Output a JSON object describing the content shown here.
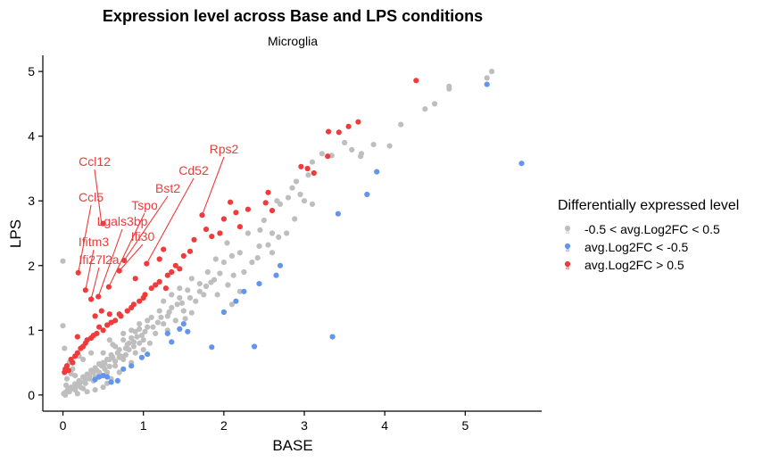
{
  "chart_data": {
    "type": "scatter",
    "title": "Expression level across Base and LPS conditions",
    "subtitle": "Microglia",
    "xlabel": "BASE",
    "ylabel": "LPS",
    "xlim": [
      -0.25,
      5.95
    ],
    "ylim": [
      -0.25,
      5.25
    ],
    "x_ticks": [
      0,
      1,
      2,
      3,
      4,
      5
    ],
    "y_ticks": [
      0,
      1,
      2,
      3,
      4,
      5
    ],
    "grid": false,
    "legend": {
      "title": "Differentially expressed level",
      "position": "right",
      "entries": [
        {
          "label": "-0.5 < avg.Log2FC < 0.5",
          "color": "#bebebe",
          "key": "glyph-a"
        },
        {
          "label": "avg.Log2FC < -0.5",
          "color": "#6495ed",
          "key": "glyph-a"
        },
        {
          "label": "avg.Log2FC > 0.5",
          "color": "#ee3b3b",
          "key": "glyph-a"
        }
      ]
    },
    "series": [
      {
        "name": "-0.5 < avg.Log2FC < 0.5",
        "color": "#bebebe",
        "points": [
          [
            5.33,
            5.0
          ],
          [
            5.27,
            4.9
          ],
          [
            4.8,
            4.77
          ],
          [
            4.8,
            4.73
          ],
          [
            4.62,
            4.5
          ],
          [
            4.5,
            4.42
          ],
          [
            4.2,
            4.18
          ],
          [
            4.06,
            3.85
          ],
          [
            3.86,
            3.87
          ],
          [
            3.71,
            3.73
          ],
          [
            3.7,
            3.69
          ],
          [
            3.59,
            3.79
          ],
          [
            3.5,
            3.9
          ],
          [
            3.34,
            3.7
          ],
          [
            3.22,
            3.73
          ],
          [
            3.1,
            3.6
          ],
          [
            3.05,
            3.4
          ],
          [
            2.95,
            3.1
          ],
          [
            3.1,
            2.95
          ],
          [
            2.9,
            3.3
          ],
          [
            2.85,
            3.2
          ],
          [
            3.0,
            3.0
          ],
          [
            2.8,
            3.05
          ],
          [
            2.7,
            2.95
          ],
          [
            2.66,
            3.0
          ],
          [
            2.88,
            2.72
          ],
          [
            2.5,
            2.7
          ],
          [
            2.45,
            2.55
          ],
          [
            2.6,
            2.5
          ],
          [
            2.44,
            2.3
          ],
          [
            2.3,
            2.5
          ],
          [
            2.55,
            2.32
          ],
          [
            2.78,
            2.5
          ],
          [
            2.68,
            2.44
          ],
          [
            2.2,
            2.2
          ],
          [
            2.04,
            2.35
          ],
          [
            2.1,
            2.15
          ],
          [
            2.0,
            2.05
          ],
          [
            1.9,
            2.1
          ],
          [
            1.8,
            1.9
          ],
          [
            1.84,
            1.74
          ],
          [
            1.7,
            1.72
          ],
          [
            1.6,
            1.8
          ],
          [
            1.55,
            1.62
          ],
          [
            1.45,
            1.5
          ],
          [
            1.92,
            1.55
          ],
          [
            2.1,
            1.4
          ],
          [
            2.2,
            1.6
          ],
          [
            1.65,
            1.45
          ],
          [
            1.5,
            1.3
          ],
          [
            1.35,
            1.35
          ],
          [
            1.3,
            1.22
          ],
          [
            1.4,
            1.15
          ],
          [
            1.52,
            1.18
          ],
          [
            1.6,
            1.27
          ],
          [
            1.25,
            1.1
          ],
          [
            1.2,
            1.3
          ],
          [
            1.1,
            1.2
          ],
          [
            1.05,
            1.05
          ],
          [
            0.95,
            1.1
          ],
          [
            0.9,
            0.98
          ],
          [
            1.15,
            0.95
          ],
          [
            0.85,
            0.88
          ],
          [
            0.8,
            0.78
          ],
          [
            0.75,
            0.85
          ],
          [
            0.7,
            0.7
          ],
          [
            0.65,
            0.75
          ],
          [
            0.6,
            0.62
          ],
          [
            0.72,
            0.6
          ],
          [
            0.55,
            0.55
          ],
          [
            0.5,
            0.5
          ],
          [
            0.45,
            0.48
          ],
          [
            0.4,
            0.42
          ],
          [
            0.35,
            0.38
          ],
          [
            0.3,
            0.32
          ],
          [
            0.25,
            0.28
          ],
          [
            0.2,
            0.22
          ],
          [
            0.15,
            0.17
          ],
          [
            0.1,
            0.12
          ],
          [
            0.06,
            0.08
          ],
          [
            0.03,
            0.04
          ],
          [
            0.01,
            0.02
          ],
          [
            0.03,
            0.0
          ],
          [
            0.08,
            0.05
          ],
          [
            0.12,
            0.1
          ],
          [
            0.18,
            0.14
          ],
          [
            0.22,
            0.2
          ],
          [
            0.28,
            0.24
          ],
          [
            0.33,
            0.3
          ],
          [
            0.38,
            0.35
          ],
          [
            0.42,
            0.38
          ],
          [
            0.48,
            0.45
          ],
          [
            0.52,
            0.48
          ],
          [
            0.58,
            0.55
          ],
          [
            0.62,
            0.58
          ],
          [
            0.68,
            0.65
          ],
          [
            0.78,
            0.72
          ],
          [
            0.82,
            0.8
          ],
          [
            0.88,
            0.82
          ],
          [
            0.92,
            0.9
          ],
          [
            0.98,
            0.92
          ],
          [
            1.02,
            0.98
          ],
          [
            1.12,
            1.05
          ],
          [
            1.18,
            1.12
          ],
          [
            0.0,
            2.07
          ],
          [
            0.0,
            1.07
          ],
          [
            0.02,
            0.72
          ],
          [
            0.4,
            0.08
          ],
          [
            0.5,
            0.12
          ],
          [
            0.55,
            0.18
          ],
          [
            0.3,
            0.05
          ],
          [
            0.6,
            0.25
          ],
          [
            0.7,
            0.35
          ],
          [
            0.85,
            0.5
          ],
          [
            1.0,
            0.7
          ],
          [
            0.15,
            0.3
          ],
          [
            0.12,
            0.4
          ],
          [
            0.08,
            0.5
          ],
          [
            0.25,
            0.55
          ],
          [
            0.2,
            0.6
          ],
          [
            0.35,
            0.65
          ],
          [
            2.25,
            1.9
          ],
          [
            2.35,
            2.05
          ],
          [
            2.05,
            1.7
          ],
          [
            1.75,
            1.55
          ],
          [
            2.12,
            1.85
          ],
          [
            2.6,
            2.2
          ],
          [
            2.42,
            2.12
          ],
          [
            1.35,
            1.55
          ],
          [
            1.45,
            1.65
          ],
          [
            1.25,
            1.45
          ],
          [
            0.65,
            0.45
          ],
          [
            0.75,
            0.55
          ],
          [
            0.9,
            0.65
          ],
          [
            1.08,
            0.8
          ],
          [
            1.3,
            1.0
          ],
          [
            0.45,
            0.3
          ],
          [
            0.55,
            0.35
          ],
          [
            0.38,
            0.22
          ],
          [
            0.18,
            0.02
          ],
          [
            0.25,
            0.1
          ],
          [
            0.5,
            0.65
          ],
          [
            0.62,
            0.78
          ],
          [
            0.58,
            0.85
          ],
          [
            0.75,
            0.95
          ],
          [
            0.85,
            1.0
          ],
          [
            0.95,
            1.02
          ],
          [
            1.05,
            1.15
          ],
          [
            1.22,
            1.2
          ],
          [
            1.32,
            1.28
          ],
          [
            1.42,
            1.4
          ],
          [
            1.48,
            1.42
          ],
          [
            1.58,
            1.5
          ],
          [
            1.7,
            1.6
          ],
          [
            1.78,
            1.68
          ],
          [
            1.88,
            1.78
          ],
          [
            1.95,
            1.88
          ],
          [
            0.05,
            0.25
          ],
          [
            0.1,
            0.33
          ],
          [
            0.04,
            0.15
          ],
          [
            0.15,
            0.08
          ],
          [
            0.22,
            0.12
          ],
          [
            0.28,
            0.18
          ],
          [
            0.33,
            0.25
          ],
          [
            0.4,
            0.28
          ],
          [
            0.45,
            0.35
          ],
          [
            0.52,
            0.4
          ],
          [
            0.58,
            0.44
          ],
          [
            0.65,
            0.52
          ],
          [
            0.7,
            0.58
          ],
          [
            0.78,
            0.62
          ],
          [
            0.82,
            0.7
          ],
          [
            0.88,
            0.75
          ],
          [
            0.95,
            0.8
          ],
          [
            1.0,
            0.85
          ]
        ]
      },
      {
        "name": "avg.Log2FC < -0.5",
        "color": "#6495ed",
        "points": [
          [
            5.7,
            3.58
          ],
          [
            5.27,
            4.8
          ],
          [
            3.9,
            3.45
          ],
          [
            3.78,
            3.1
          ],
          [
            3.42,
            2.8
          ],
          [
            2.7,
            2.0
          ],
          [
            2.65,
            1.85
          ],
          [
            2.44,
            1.72
          ],
          [
            2.25,
            1.6
          ],
          [
            2.15,
            1.45
          ],
          [
            2.0,
            1.28
          ],
          [
            1.5,
            1.1
          ],
          [
            1.45,
            1.02
          ],
          [
            1.55,
            0.98
          ],
          [
            1.3,
            0.95
          ],
          [
            1.35,
            0.82
          ],
          [
            2.38,
            0.75
          ],
          [
            1.85,
            0.74
          ],
          [
            3.35,
            0.9
          ],
          [
            1.05,
            0.63
          ],
          [
            0.98,
            0.58
          ],
          [
            0.85,
            0.45
          ],
          [
            0.75,
            0.4
          ],
          [
            0.68,
            0.22
          ],
          [
            0.6,
            0.2
          ],
          [
            0.55,
            0.28
          ],
          [
            0.5,
            0.3
          ],
          [
            0.45,
            0.28
          ],
          [
            0.4,
            0.24
          ]
        ]
      },
      {
        "name": "avg.Log2FC > 0.5",
        "color": "#ee3b3b",
        "points": [
          [
            4.39,
            4.86
          ],
          [
            3.67,
            4.22
          ],
          [
            3.55,
            4.15
          ],
          [
            3.43,
            4.06
          ],
          [
            3.29,
            3.69
          ],
          [
            3.3,
            4.07
          ],
          [
            3.04,
            3.5
          ],
          [
            2.96,
            3.53
          ],
          [
            3.12,
            3.43
          ],
          [
            2.55,
            3.13
          ],
          [
            2.08,
            2.98
          ],
          [
            2.52,
            2.97
          ],
          [
            2.3,
            2.87
          ],
          [
            2.6,
            2.85
          ],
          [
            2.15,
            2.82
          ],
          [
            2.0,
            2.72
          ],
          [
            2.2,
            2.6
          ],
          [
            1.95,
            2.5
          ],
          [
            1.85,
            2.45
          ],
          [
            1.78,
            2.56
          ],
          [
            1.63,
            2.4
          ],
          [
            1.58,
            2.22
          ],
          [
            1.5,
            2.15
          ],
          [
            1.4,
            2.0
          ],
          [
            1.35,
            1.9
          ],
          [
            1.3,
            1.85
          ],
          [
            1.2,
            1.75
          ],
          [
            1.1,
            1.65
          ],
          [
            1.02,
            1.55
          ],
          [
            0.95,
            1.45
          ],
          [
            0.88,
            1.4
          ],
          [
            0.8,
            1.3
          ],
          [
            0.72,
            1.22
          ],
          [
            0.65,
            1.15
          ],
          [
            0.55,
            1.08
          ],
          [
            0.5,
            1.0
          ],
          [
            0.42,
            0.95
          ],
          [
            0.35,
            0.88
          ],
          [
            0.28,
            0.8
          ],
          [
            0.22,
            0.72
          ],
          [
            0.15,
            0.6
          ],
          [
            0.1,
            0.55
          ],
          [
            0.05,
            0.45
          ],
          [
            0.03,
            0.4
          ],
          [
            0.02,
            0.35
          ],
          [
            0.07,
            0.38
          ],
          [
            0.12,
            0.5
          ],
          [
            0.18,
            0.65
          ],
          [
            0.25,
            0.75
          ],
          [
            0.3,
            0.85
          ],
          [
            0.38,
            0.92
          ],
          [
            0.45,
            1.05
          ],
          [
            0.6,
            1.12
          ],
          [
            0.7,
            1.25
          ],
          [
            0.85,
            1.35
          ],
          [
            1.0,
            1.5
          ],
          [
            1.15,
            1.7
          ],
          [
            1.28,
            1.65
          ],
          [
            1.45,
            1.95
          ],
          [
            0.58,
            1.25
          ],
          [
            0.48,
            1.3
          ],
          [
            0.4,
            1.22
          ],
          [
            0.18,
            0.9
          ],
          [
            1.73,
            2.78
          ],
          [
            1.04,
            2.03
          ],
          [
            0.7,
            1.92
          ],
          [
            0.57,
            1.67
          ],
          [
            0.44,
            1.52
          ],
          [
            0.35,
            1.48
          ],
          [
            0.28,
            1.62
          ],
          [
            0.19,
            1.89
          ],
          [
            0.5,
            2.65
          ],
          [
            0.76,
            2.08
          ],
          [
            0.9,
            1.8
          ],
          [
            1.2,
            2.1
          ],
          [
            1.25,
            2.25
          ]
        ]
      }
    ],
    "annotations": [
      {
        "text": "Ccl12",
        "point": [
          0.48,
          2.65
        ]
      },
      {
        "text": "Ccl5",
        "point": [
          0.19,
          1.89
        ]
      },
      {
        "text": "Ifitm3",
        "point": [
          0.28,
          1.62
        ]
      },
      {
        "text": "Ifi27l2a",
        "point": [
          0.35,
          1.48
        ]
      },
      {
        "text": "Lgals3bp",
        "point": [
          0.44,
          1.52
        ]
      },
      {
        "text": "Tspo",
        "point": [
          0.57,
          1.67
        ]
      },
      {
        "text": "Ifi30",
        "point": [
          0.7,
          1.92
        ]
      },
      {
        "text": "Bst2",
        "point": [
          0.76,
          2.08
        ]
      },
      {
        "text": "Cd52",
        "point": [
          1.04,
          2.03
        ]
      },
      {
        "text": "Rps2",
        "point": [
          1.73,
          2.78
        ]
      }
    ]
  }
}
